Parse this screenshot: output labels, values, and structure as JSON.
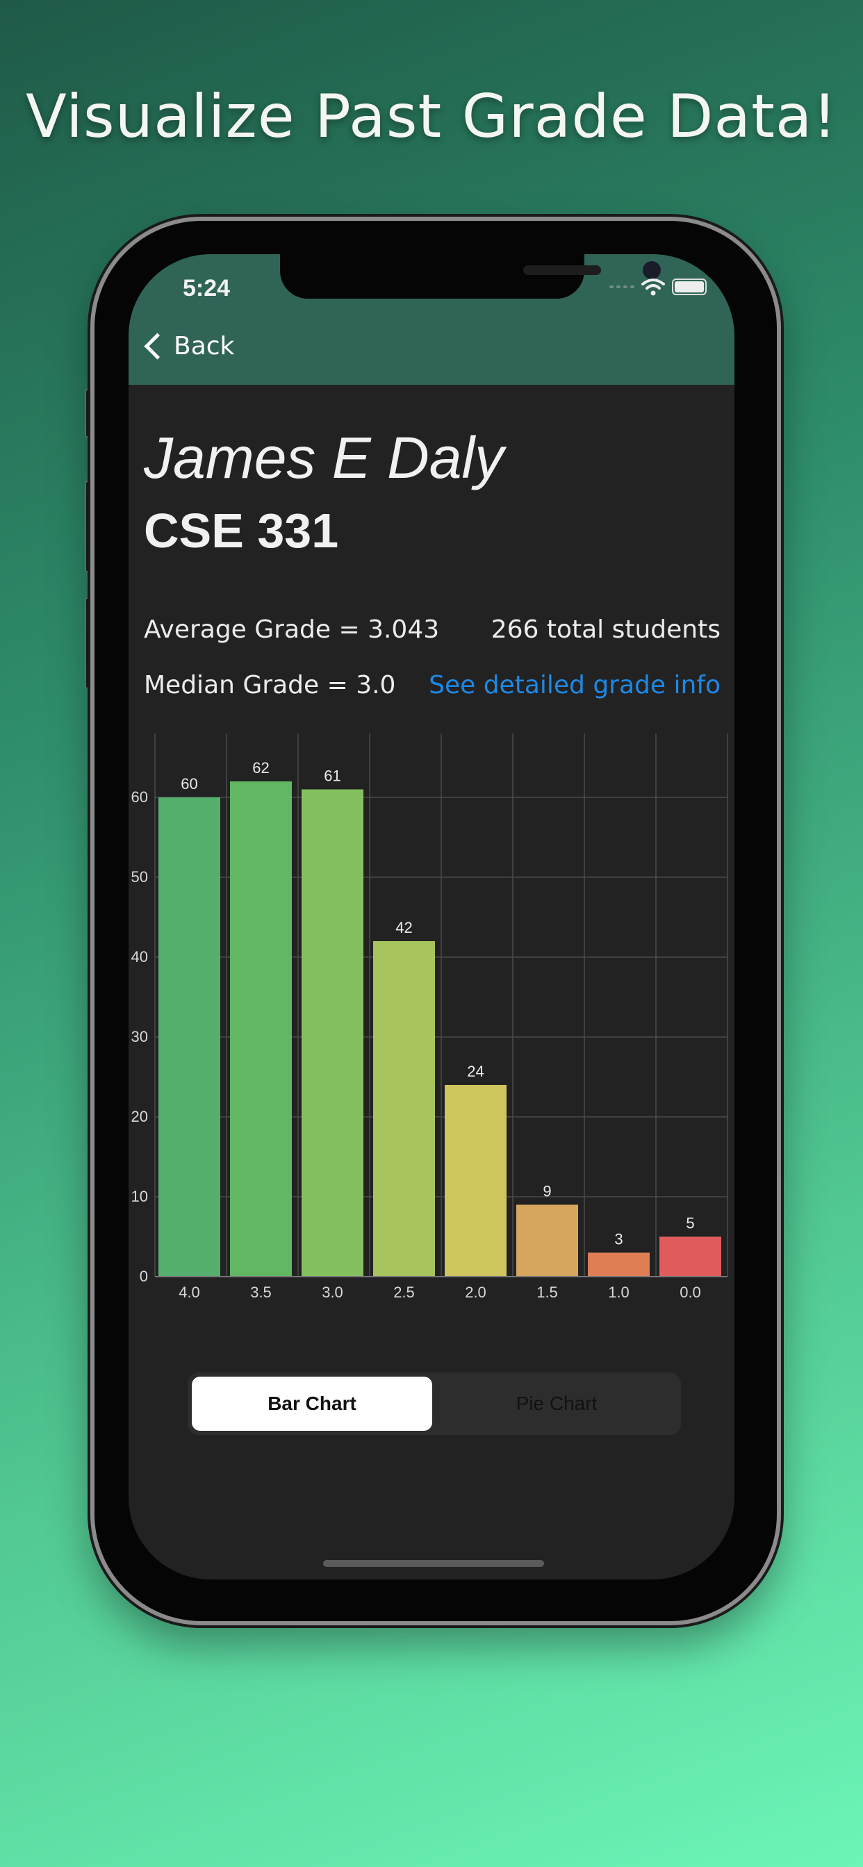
{
  "headline": "Visualize Past Grade Data!",
  "status_bar": {
    "time": "5:24"
  },
  "nav": {
    "back_label": "Back"
  },
  "professor": "James E Daly",
  "course": "CSE 331",
  "stats": {
    "average": "Average Grade = 3.043",
    "total": "266 total students",
    "median": "Median Grade = 3.0",
    "detail_link": "See detailed grade info"
  },
  "chart_data": {
    "type": "bar",
    "categories": [
      "4.0",
      "3.5",
      "3.0",
      "2.5",
      "2.0",
      "1.5",
      "1.0",
      "0.0"
    ],
    "values": [
      60,
      62,
      61,
      42,
      24,
      9,
      3,
      5
    ],
    "bar_colors": [
      "#55b06e",
      "#62b862",
      "#84c060",
      "#a8c45c",
      "#cfc55e",
      "#d6a55e",
      "#df7d55",
      "#e05c5c"
    ],
    "ylim": [
      0,
      68
    ],
    "yticks": [
      0,
      10,
      20,
      30,
      40,
      50,
      60
    ],
    "grid": true
  },
  "segmented_control": {
    "options": [
      "Bar Chart",
      "Pie Chart"
    ],
    "selected": "Bar Chart"
  },
  "colors": {
    "header": "#2f6457",
    "background": "#222222",
    "link": "#1e88e5"
  }
}
